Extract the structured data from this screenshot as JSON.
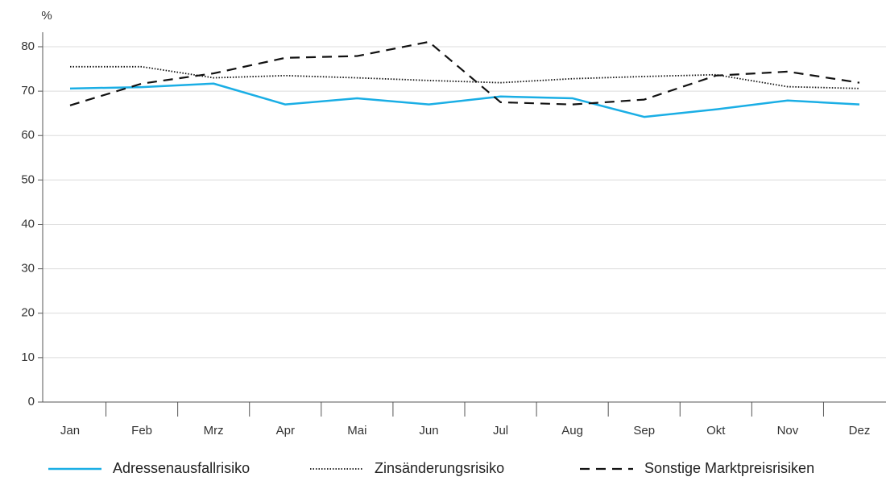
{
  "chart_data": {
    "type": "line",
    "y_label": "%",
    "categories": [
      "Jan",
      "Feb",
      "Mrz",
      "Apr",
      "Mai",
      "Jun",
      "Jul",
      "Aug",
      "Sep",
      "Okt",
      "Nov",
      "Dez"
    ],
    "series": [
      {
        "name": "Adressenausfallrisiko",
        "color": "#1aaee5",
        "dash": "solid",
        "values": [
          70.6,
          70.9,
          71.7,
          67.0,
          68.4,
          67.0,
          68.8,
          68.4,
          64.2,
          65.9,
          67.9,
          67.0
        ]
      },
      {
        "name": "Zinsänderungsrisiko",
        "color": "#111111",
        "dash": "dotted",
        "values": [
          75.5,
          75.5,
          73.0,
          73.5,
          73.0,
          72.4,
          71.9,
          72.8,
          73.3,
          73.7,
          71.0,
          70.6
        ]
      },
      {
        "name": "Sonstige Marktpreisrisiken",
        "color": "#111111",
        "dash": "dashed",
        "values": [
          66.8,
          71.7,
          74.0,
          77.5,
          77.9,
          81.1,
          67.5,
          67.0,
          68.1,
          73.5,
          74.4,
          71.9
        ]
      }
    ],
    "ylim": [
      0,
      80
    ],
    "yticks": [
      0,
      10,
      20,
      30,
      40,
      50,
      60,
      70,
      80
    ],
    "grid": true
  }
}
